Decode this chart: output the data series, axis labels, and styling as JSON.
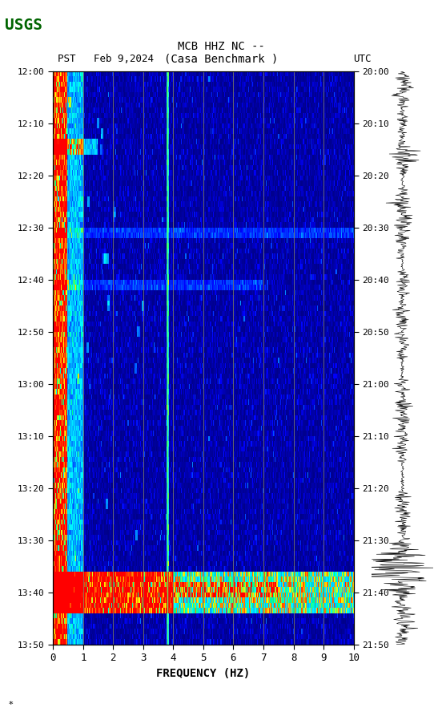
{
  "title_line1": "MCB HHZ NC --",
  "title_line2": "(Casa Benchmark )",
  "left_label": "PST   Feb 9,2024",
  "right_label": "UTC",
  "freq_label": "FREQUENCY (HZ)",
  "freq_min": 0,
  "freq_max": 10,
  "time_left_start": "12:00",
  "time_left_end": "13:50",
  "time_right_start": "20:00",
  "time_right_end": "21:50",
  "time_ticks_left": [
    "12:00",
    "12:10",
    "12:20",
    "12:30",
    "12:40",
    "12:50",
    "13:00",
    "13:10",
    "13:20",
    "13:30",
    "13:40",
    "13:50"
  ],
  "time_ticks_right": [
    "20:00",
    "20:10",
    "20:20",
    "20:30",
    "20:40",
    "20:50",
    "21:00",
    "21:10",
    "21:20",
    "21:30",
    "21:40",
    "21:50"
  ],
  "freq_ticks": [
    0,
    1,
    2,
    3,
    4,
    5,
    6,
    7,
    8,
    9,
    10
  ],
  "freq_grid_lines": [
    1,
    2,
    3,
    4,
    5,
    6,
    7,
    8,
    9
  ],
  "vertical_yellow_lines": [
    3.8
  ],
  "background_color": "#000080",
  "grid_line_color": "#808040",
  "fig_bg_color": "#ffffff",
  "usgs_logo_color": "#006400",
  "spectrogram_rows": 110,
  "spectrogram_cols": 350,
  "seed": 42
}
